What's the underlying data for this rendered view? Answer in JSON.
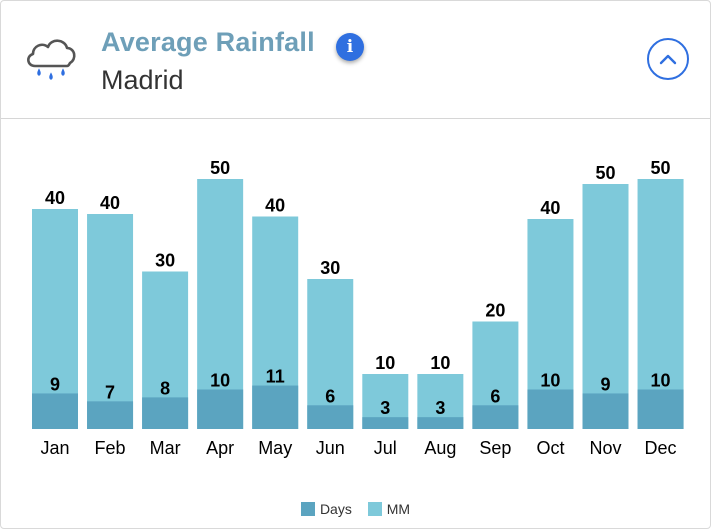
{
  "header": {
    "title": "Average Rainfall",
    "subtitle": "Madrid",
    "info_glyph": "i",
    "weather_icon": "rain-cloud-icon",
    "collapse_icon": "chevron-up-icon"
  },
  "colors": {
    "days": "#5ba4c0",
    "mm": "#7ec9da",
    "accent": "#2f6fe0",
    "title": "#6e9fb8"
  },
  "chart_data": {
    "type": "bar",
    "title": "Average Rainfall",
    "subtitle": "Madrid",
    "categories": [
      "Jan",
      "Feb",
      "Mar",
      "Apr",
      "May",
      "Jun",
      "Jul",
      "Aug",
      "Sep",
      "Oct",
      "Nov",
      "Dec"
    ],
    "series": [
      {
        "name": "Days",
        "values": [
          9,
          7,
          8,
          10,
          11,
          6,
          3,
          3,
          6,
          10,
          9,
          10
        ]
      },
      {
        "name": "MM",
        "values": [
          40,
          40,
          30,
          50,
          40,
          30,
          10,
          10,
          20,
          40,
          50,
          50
        ]
      }
    ],
    "bar_tops_mm_relative": [
      0.88,
      0.86,
      0.63,
      1.0,
      0.85,
      0.6,
      0.22,
      0.22,
      0.43,
      0.84,
      0.98,
      1.0
    ],
    "layering": "overlaid",
    "legend_position": "bottom",
    "grid": false,
    "xlabel": "",
    "ylabel": ""
  }
}
